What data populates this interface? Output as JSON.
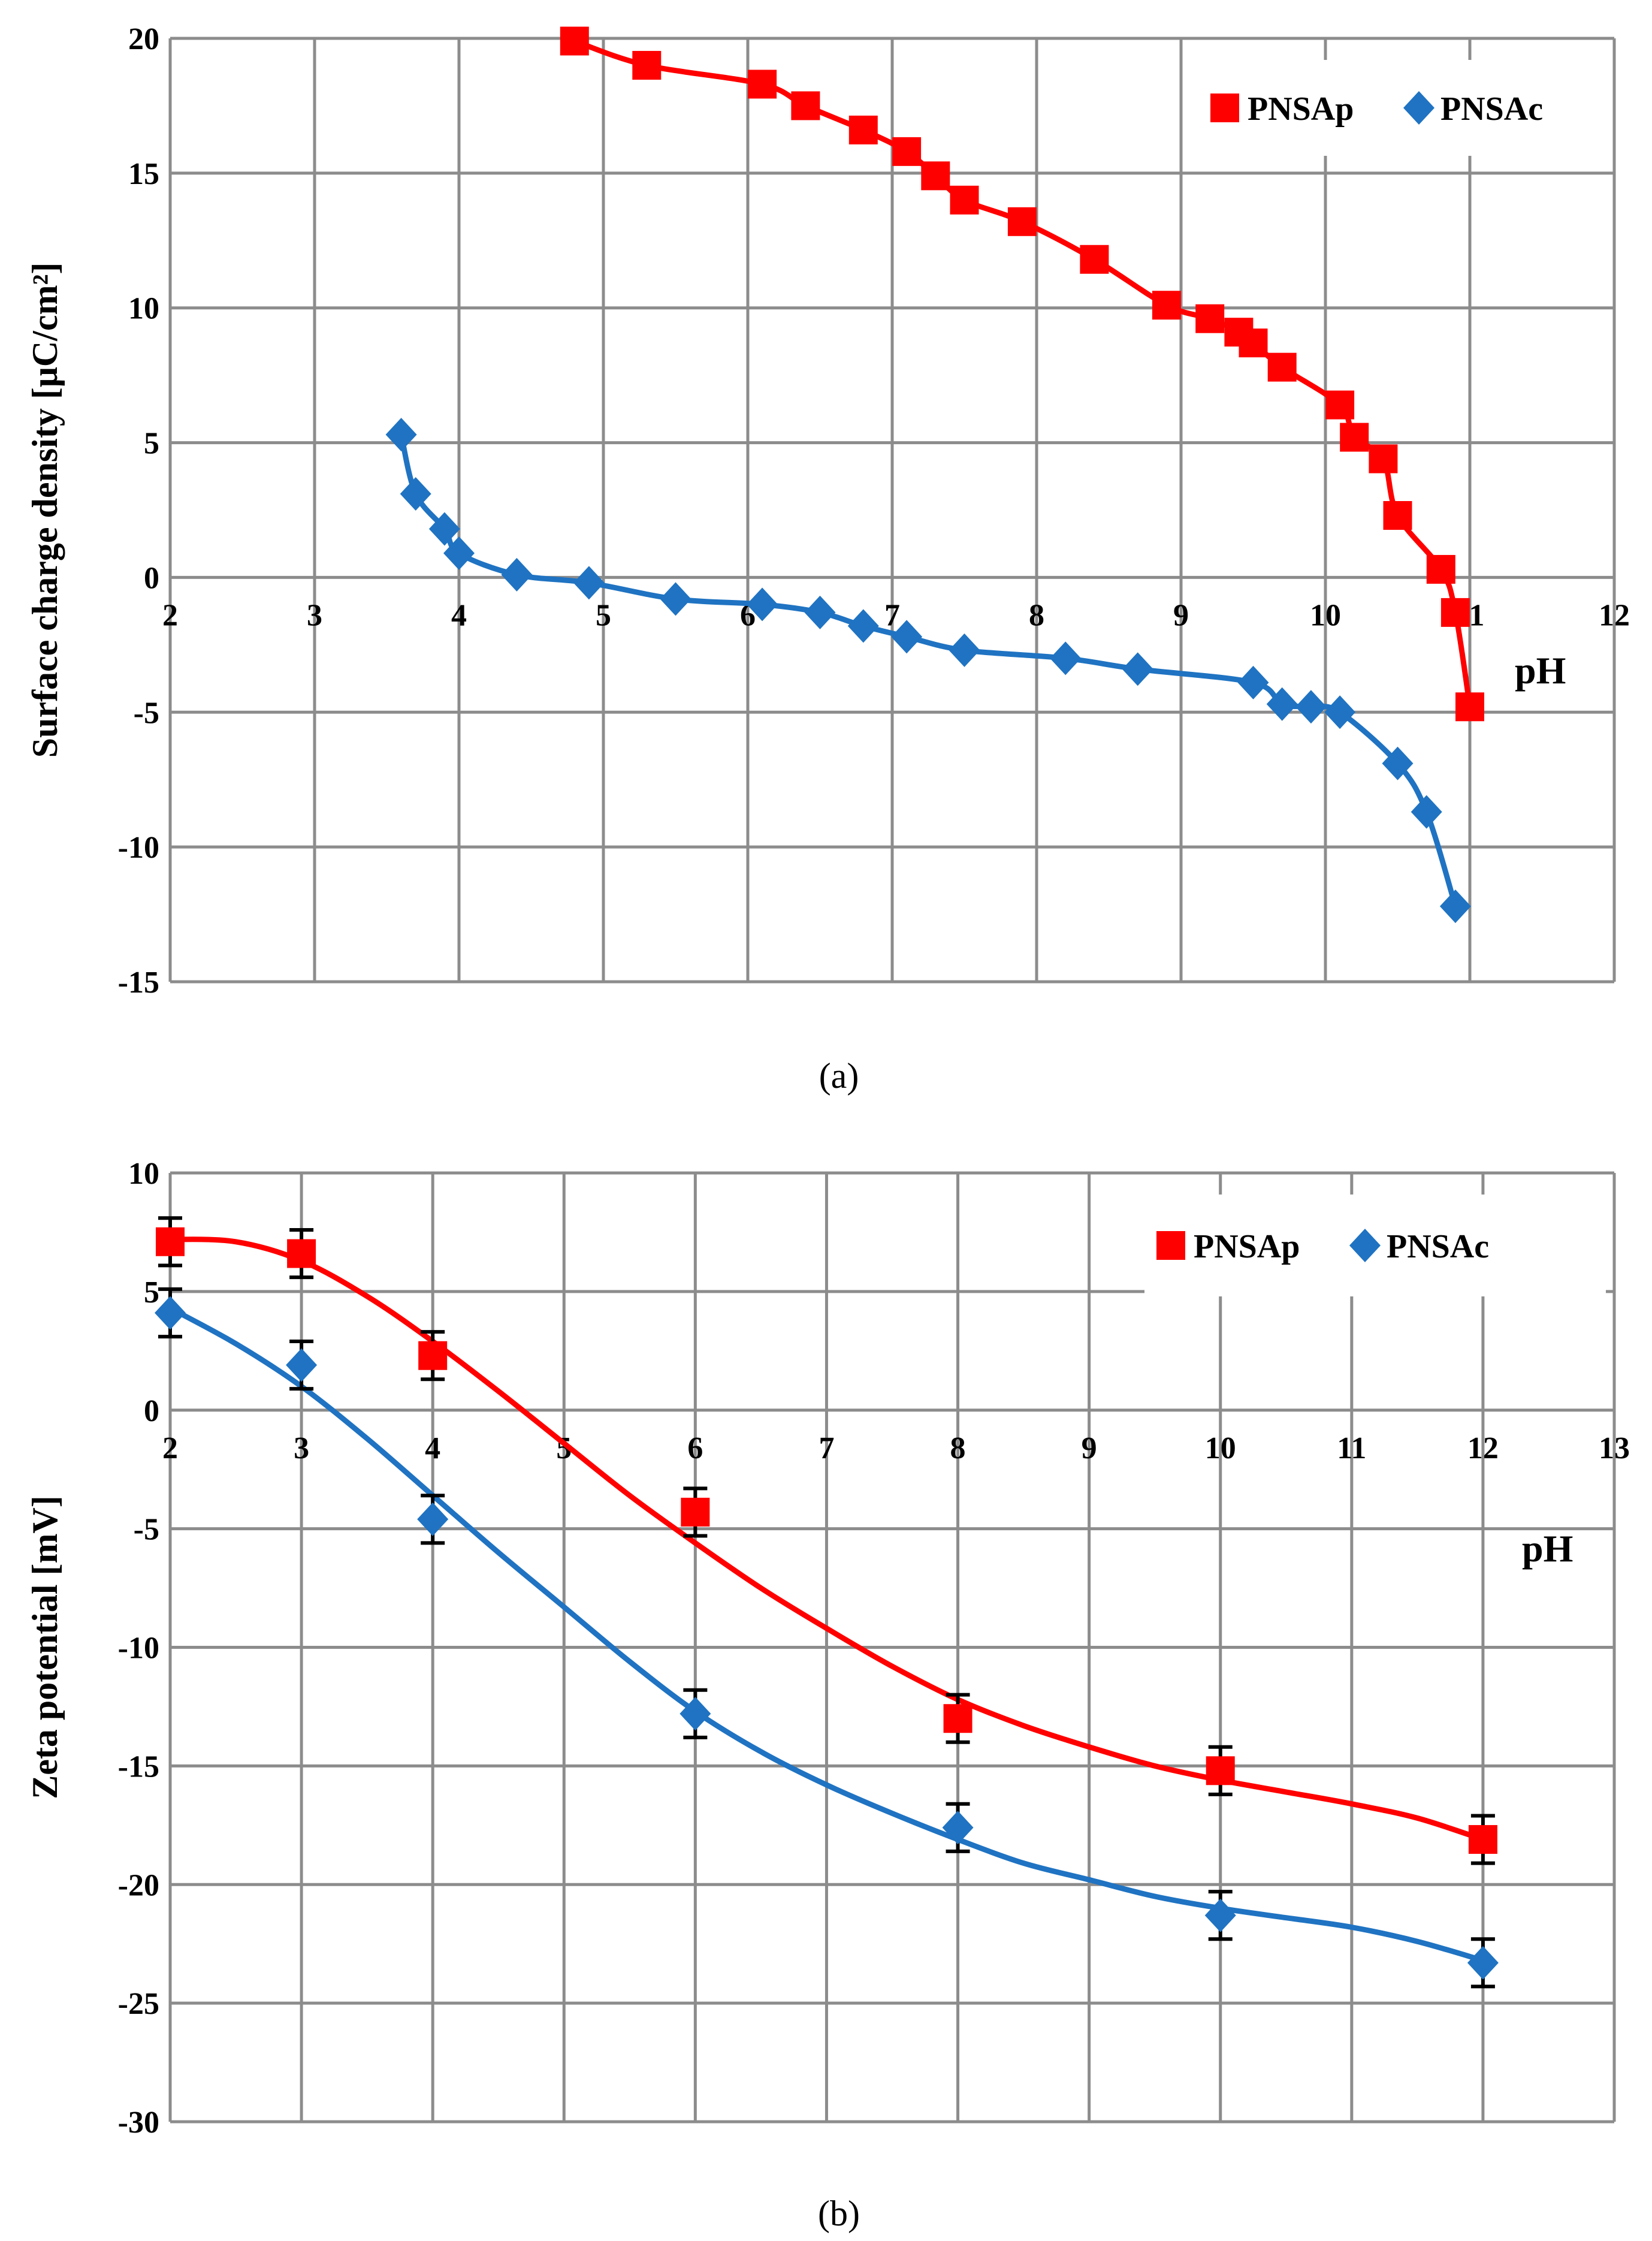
{
  "chart_data": [
    {
      "type": "scatter",
      "panel_label": "(a)",
      "xlabel": "pH",
      "ylabel": "Surface charge density [μC/cm²]",
      "xlim": [
        2,
        12
      ],
      "ylim": [
        -15,
        20
      ],
      "x_ticks": [
        2,
        3,
        4,
        5,
        6,
        7,
        8,
        9,
        10,
        11,
        12
      ],
      "y_ticks": [
        20,
        15,
        10,
        5,
        0,
        -5,
        -10,
        -15
      ],
      "grid": true,
      "legend_position": "top-right",
      "series": [
        {
          "name": "PNSAp",
          "marker": "square",
          "color": "#ff0000",
          "x": [
            4.8,
            5.3,
            6.1,
            6.4,
            6.8,
            7.1,
            7.3,
            7.5,
            7.9,
            8.4,
            8.9,
            9.2,
            9.4,
            9.5,
            9.7,
            10.1,
            10.2,
            10.4,
            10.5,
            10.8,
            10.9,
            11.0
          ],
          "y": [
            19.9,
            19.0,
            18.3,
            17.5,
            16.6,
            15.8,
            14.9,
            14.0,
            13.2,
            11.8,
            10.1,
            9.6,
            9.1,
            8.7,
            7.8,
            6.4,
            5.2,
            4.4,
            2.3,
            0.3,
            -1.3,
            -4.8
          ]
        },
        {
          "name": "PNSAc",
          "marker": "diamond",
          "color": "#1f73c2",
          "x": [
            3.6,
            3.7,
            3.9,
            4.0,
            4.4,
            4.9,
            5.5,
            6.1,
            6.5,
            6.8,
            7.1,
            7.5,
            8.2,
            8.7,
            9.5,
            9.7,
            9.9,
            10.1,
            10.5,
            10.7,
            10.9
          ],
          "y": [
            5.3,
            3.1,
            1.8,
            0.9,
            0.1,
            -0.2,
            -0.8,
            -1.0,
            -1.3,
            -1.8,
            -2.2,
            -2.7,
            -3.0,
            -3.4,
            -3.9,
            -4.7,
            -4.8,
            -5.0,
            -6.9,
            -8.7,
            -12.2
          ]
        }
      ]
    },
    {
      "type": "scatter",
      "panel_label": "(b)",
      "xlabel": "pH",
      "ylabel": "Zeta potential [mV]",
      "xlim": [
        2,
        13
      ],
      "ylim": [
        -30,
        10
      ],
      "x_ticks": [
        2,
        3,
        4,
        5,
        6,
        7,
        8,
        9,
        10,
        11,
        12,
        13
      ],
      "y_ticks": [
        10,
        5,
        0,
        -5,
        -10,
        -15,
        -20,
        -25,
        -30
      ],
      "grid": true,
      "legend_position": "top-right",
      "error_bars": true,
      "series": [
        {
          "name": "PNSAp",
          "marker": "square",
          "color": "#ff0000",
          "x": [
            2,
            3,
            4,
            6,
            8,
            10,
            12
          ],
          "y": [
            7.1,
            6.6,
            2.3,
            -4.3,
            -13.0,
            -15.2,
            -18.1
          ],
          "error": [
            1.0,
            1.0,
            1.0,
            1.0,
            1.0,
            1.0,
            1.0
          ],
          "curve": [
            [
              2,
              7.2
            ],
            [
              2.5,
              7.1
            ],
            [
              3,
              6.3
            ],
            [
              3.5,
              4.8
            ],
            [
              4,
              2.9
            ],
            [
              4.5,
              0.8
            ],
            [
              5,
              -1.4
            ],
            [
              5.5,
              -3.6
            ],
            [
              6,
              -5.6
            ],
            [
              6.5,
              -7.5
            ],
            [
              7,
              -9.2
            ],
            [
              7.5,
              -10.8
            ],
            [
              8,
              -12.2
            ],
            [
              8.5,
              -13.3
            ],
            [
              9,
              -14.2
            ],
            [
              9.5,
              -15.0
            ],
            [
              10,
              -15.6
            ],
            [
              10.5,
              -16.1
            ],
            [
              11,
              -16.6
            ],
            [
              11.5,
              -17.2
            ],
            [
              12,
              -18.1
            ]
          ]
        },
        {
          "name": "PNSAc",
          "marker": "diamond",
          "color": "#1f73c2",
          "x": [
            2,
            3,
            4,
            6,
            8,
            10,
            12
          ],
          "y": [
            4.1,
            1.9,
            -4.6,
            -12.8,
            -17.6,
            -21.3,
            -23.3
          ],
          "error": [
            1.0,
            1.0,
            1.0,
            1.0,
            1.0,
            1.0,
            1.0
          ],
          "curve": [
            [
              2,
              4.3
            ],
            [
              2.5,
              2.8
            ],
            [
              3,
              1.0
            ],
            [
              3.5,
              -1.2
            ],
            [
              4,
              -3.6
            ],
            [
              4.5,
              -6.0
            ],
            [
              5,
              -8.3
            ],
            [
              5.5,
              -10.6
            ],
            [
              6,
              -12.7
            ],
            [
              6.5,
              -14.4
            ],
            [
              7,
              -15.8
            ],
            [
              7.5,
              -17.0
            ],
            [
              8,
              -18.1
            ],
            [
              8.5,
              -19.1
            ],
            [
              9,
              -19.8
            ],
            [
              9.5,
              -20.5
            ],
            [
              10,
              -21.0
            ],
            [
              10.5,
              -21.4
            ],
            [
              11,
              -21.8
            ],
            [
              11.5,
              -22.4
            ],
            [
              12,
              -23.2
            ]
          ]
        }
      ]
    }
  ]
}
